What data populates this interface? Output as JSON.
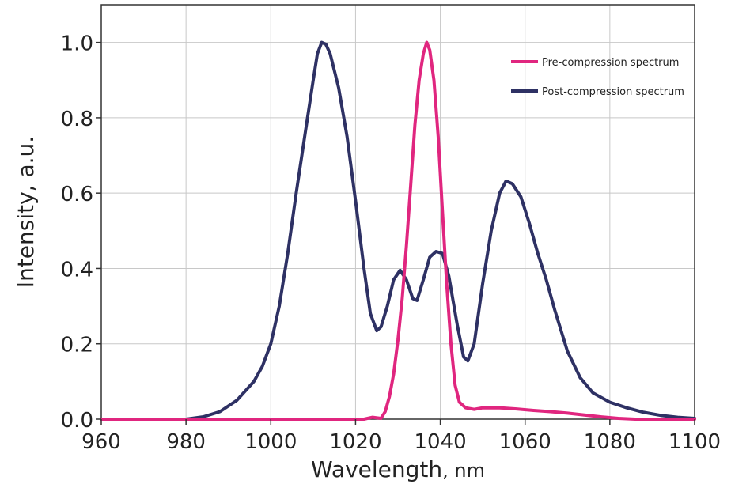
{
  "chart_data": {
    "type": "line",
    "title": "",
    "xlabel": "Wavelength",
    "xunit": ", nm",
    "ylabel": "Intensity, a.u.",
    "xlim": [
      960,
      1100
    ],
    "ylim": [
      0,
      1.1
    ],
    "xticks": [
      960,
      980,
      1000,
      1020,
      1040,
      1060,
      1080,
      1100
    ],
    "xtick_labels": [
      "960",
      "980",
      "1000",
      "1020",
      "1040",
      "1060",
      "1080",
      "1100"
    ],
    "yticks": [
      0,
      0.2,
      0.4,
      0.6,
      0.8,
      1.0
    ],
    "ytick_labels": [
      "0.0",
      "0.2",
      "0.4",
      "0.6",
      "0.8",
      "1.0"
    ],
    "grid": true,
    "legend_position": "top-right",
    "series": [
      {
        "name": "Pre-compression spectrum",
        "color": "#e0267f",
        "points": [
          [
            960,
            0
          ],
          [
            1022,
            0
          ],
          [
            1024,
            0.005
          ],
          [
            1026,
            0.002
          ],
          [
            1027,
            0.02
          ],
          [
            1028,
            0.06
          ],
          [
            1029,
            0.12
          ],
          [
            1030,
            0.21
          ],
          [
            1031,
            0.32
          ],
          [
            1032,
            0.46
          ],
          [
            1033,
            0.62
          ],
          [
            1034,
            0.78
          ],
          [
            1035,
            0.9
          ],
          [
            1036,
            0.97
          ],
          [
            1036.8,
            1.0
          ],
          [
            1037.5,
            0.98
          ],
          [
            1038.5,
            0.9
          ],
          [
            1039.5,
            0.75
          ],
          [
            1040.5,
            0.55
          ],
          [
            1041.5,
            0.36
          ],
          [
            1042.5,
            0.2
          ],
          [
            1043.5,
            0.09
          ],
          [
            1044.5,
            0.045
          ],
          [
            1046,
            0.03
          ],
          [
            1048,
            0.026
          ],
          [
            1050,
            0.03
          ],
          [
            1054,
            0.03
          ],
          [
            1058,
            0.027
          ],
          [
            1062,
            0.023
          ],
          [
            1066,
            0.02
          ],
          [
            1070,
            0.016
          ],
          [
            1074,
            0.011
          ],
          [
            1078,
            0.006
          ],
          [
            1082,
            0.002
          ],
          [
            1086,
            0
          ],
          [
            1100,
            0
          ]
        ]
      },
      {
        "name": "Post-compression spectrum",
        "color": "#2e3164",
        "points": [
          [
            960,
            0
          ],
          [
            980,
            0
          ],
          [
            984,
            0.006
          ],
          [
            988,
            0.02
          ],
          [
            992,
            0.05
          ],
          [
            996,
            0.1
          ],
          [
            998,
            0.14
          ],
          [
            1000,
            0.2
          ],
          [
            1002,
            0.3
          ],
          [
            1004,
            0.44
          ],
          [
            1006,
            0.6
          ],
          [
            1008,
            0.75
          ],
          [
            1010,
            0.9
          ],
          [
            1011,
            0.97
          ],
          [
            1012,
            1.0
          ],
          [
            1013,
            0.995
          ],
          [
            1014,
            0.97
          ],
          [
            1016,
            0.88
          ],
          [
            1018,
            0.75
          ],
          [
            1020,
            0.58
          ],
          [
            1022,
            0.4
          ],
          [
            1023.5,
            0.28
          ],
          [
            1025,
            0.235
          ],
          [
            1026,
            0.245
          ],
          [
            1027.5,
            0.3
          ],
          [
            1029,
            0.37
          ],
          [
            1030.5,
            0.395
          ],
          [
            1032,
            0.37
          ],
          [
            1033.5,
            0.32
          ],
          [
            1034.5,
            0.315
          ],
          [
            1036,
            0.37
          ],
          [
            1037.5,
            0.43
          ],
          [
            1039,
            0.445
          ],
          [
            1040.5,
            0.44
          ],
          [
            1042,
            0.38
          ],
          [
            1044,
            0.25
          ],
          [
            1045.5,
            0.165
          ],
          [
            1046.5,
            0.155
          ],
          [
            1048,
            0.2
          ],
          [
            1050,
            0.36
          ],
          [
            1052,
            0.5
          ],
          [
            1054,
            0.6
          ],
          [
            1055.5,
            0.632
          ],
          [
            1057,
            0.625
          ],
          [
            1059,
            0.59
          ],
          [
            1061,
            0.52
          ],
          [
            1063,
            0.44
          ],
          [
            1065,
            0.37
          ],
          [
            1067,
            0.29
          ],
          [
            1070,
            0.18
          ],
          [
            1073,
            0.11
          ],
          [
            1076,
            0.07
          ],
          [
            1080,
            0.045
          ],
          [
            1084,
            0.03
          ],
          [
            1088,
            0.018
          ],
          [
            1092,
            0.01
          ],
          [
            1096,
            0.005
          ],
          [
            1100,
            0.002
          ]
        ]
      }
    ]
  }
}
